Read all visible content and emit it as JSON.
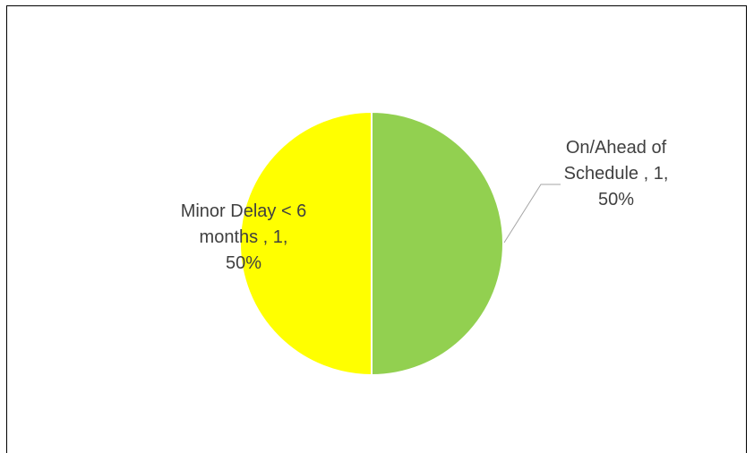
{
  "chart_data": {
    "type": "pie",
    "title": "",
    "slices": [
      {
        "category": "On/Ahead of Schedule",
        "value": 1,
        "percent": "50%",
        "color": "#92d050",
        "label_lines": [
          "On/Ahead of",
          "Schedule , 1,",
          "50%"
        ]
      },
      {
        "category": "Minor Delay < 6 months",
        "value": 1,
        "percent": "50%",
        "color": "#ffff00",
        "label_lines": [
          "Minor Delay < 6",
          "months , 1,",
          "50%"
        ]
      }
    ],
    "legend": "none",
    "data_labels": "category, value, percentage"
  }
}
